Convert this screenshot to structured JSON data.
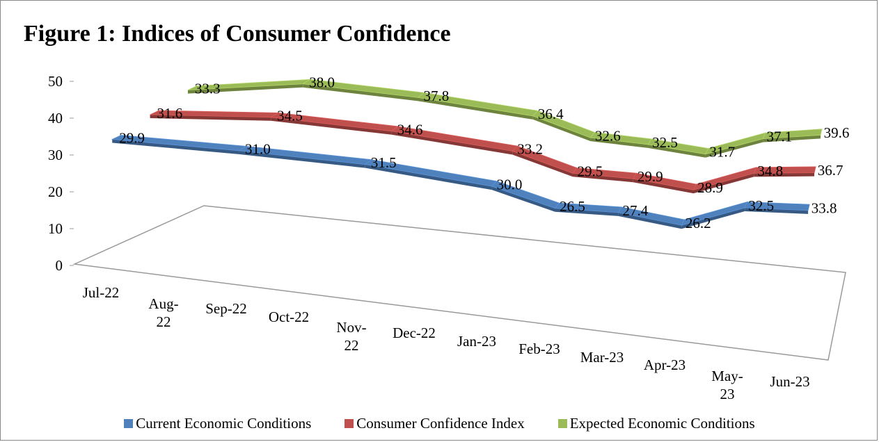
{
  "chart_data": {
    "type": "line3d",
    "title": "Figure 1: Indices of Consumer Confidence",
    "categories": [
      "Jul-22",
      "Aug-22",
      "Sep-22",
      "Oct-22",
      "Nov-22",
      "Dec-22",
      "Jan-23",
      "Feb-23",
      "Mar-23",
      "Apr-23",
      "May-23",
      "Jun-23"
    ],
    "series": [
      {
        "name": "Current Economic Conditions",
        "color": "#4f81bd",
        "values": [
          29.9,
          null,
          31.0,
          null,
          31.5,
          null,
          30.0,
          26.5,
          27.4,
          26.2,
          32.5,
          33.8
        ],
        "value_labels": [
          "29.9",
          null,
          "31.0",
          null,
          "31.5",
          null,
          "30.0",
          "26.5",
          "27.4",
          "26.2",
          "32.5",
          "33.8"
        ]
      },
      {
        "name": "Consumer Confidence Index",
        "color": "#c0504d",
        "values": [
          31.6,
          null,
          34.5,
          null,
          34.6,
          null,
          33.2,
          29.5,
          29.9,
          28.9,
          34.8,
          36.7
        ],
        "value_labels": [
          "31.6",
          null,
          "34.5",
          null,
          "34.6",
          null,
          "33.2",
          "29.5",
          "29.9",
          "28.9",
          "34.8",
          "36.7"
        ]
      },
      {
        "name": "Expected Economic Conditions",
        "color": "#9bbb59",
        "values": [
          33.3,
          null,
          38.0,
          null,
          37.8,
          null,
          36.4,
          32.6,
          32.5,
          31.7,
          37.1,
          39.6
        ],
        "value_labels": [
          "33.3",
          null,
          "38.0",
          null,
          "37.8",
          null,
          "36.4",
          "32.6",
          "32.5",
          "31.7",
          "37.1",
          "39.6"
        ]
      }
    ],
    "ylim": [
      0,
      50
    ],
    "yticks": [
      0,
      10,
      20,
      30,
      40,
      50
    ],
    "legend": "bottom"
  }
}
